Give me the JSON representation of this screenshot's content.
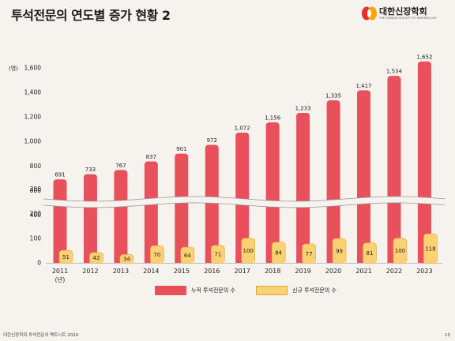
{
  "header": {
    "title": "투석전문의 연도별 증가 현황 2",
    "logo_text": "대한신장학회",
    "logo_subtext": "THE KOREAN SOCIETY OF NEPHROLOGY"
  },
  "footer": {
    "source": "대한신장학회 투석전문의 팩트시트 2024",
    "page_number": "10"
  },
  "colors": {
    "cumulative": "#e8505b",
    "new": "#fbd173",
    "background": "#f6f3ef"
  },
  "chart_data": {
    "type": "bar",
    "title": "투석전문의 연도별 증가 현황 2",
    "ylabel": "(명)",
    "x_unit_label": "(년)",
    "axis_break": [
      300,
      500
    ],
    "ylim": [
      0,
      1600
    ],
    "y_ticks": [
      "0",
      "100",
      "200",
      "300",
      "400",
      "600",
      "800",
      "1,000",
      "1,200",
      "1,400",
      "1,600"
    ],
    "categories": [
      "2011",
      "2012",
      "2013",
      "2014",
      "2015",
      "2016",
      "2017",
      "2018",
      "2019",
      "2020",
      "2021",
      "2022",
      "2023"
    ],
    "legend_position": "bottom",
    "series": [
      {
        "name": "누적 투석전문의 수",
        "values": [
          691,
          733,
          767,
          837,
          901,
          972,
          1072,
          1156,
          1233,
          1335,
          1417,
          1534,
          1652
        ],
        "labels": [
          "691",
          "733",
          "767",
          "837",
          "901",
          "972",
          "1,072",
          "1,156",
          "1,233",
          "1,335",
          "1,417",
          "1,534",
          "1,652"
        ]
      },
      {
        "name": "신규 투석전문의 수",
        "values": [
          51,
          42,
          34,
          70,
          64,
          71,
          100,
          84,
          77,
          99,
          81,
          100,
          118
        ],
        "labels": [
          "51",
          "42",
          "34",
          "70",
          "64",
          "71",
          "100",
          "84",
          "77",
          "99",
          "81",
          "100",
          "118"
        ]
      }
    ]
  }
}
